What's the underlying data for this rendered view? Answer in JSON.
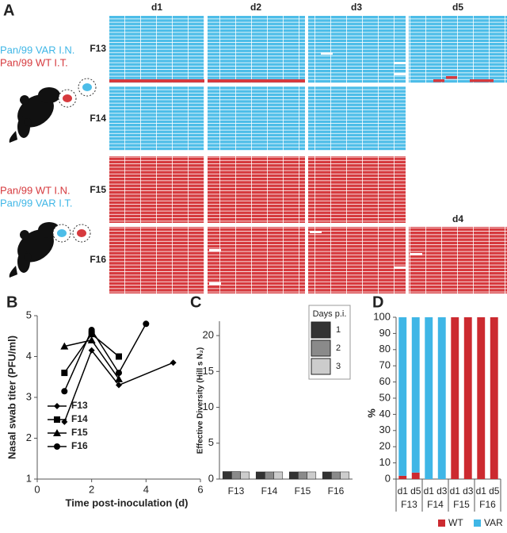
{
  "panel_a": {
    "label": "A",
    "days": [
      "d1",
      "d2",
      "d3",
      "d5"
    ],
    "extra_day": "d4",
    "groups": [
      {
        "legend": [
          "Pan/99 VAR I.N.",
          "Pan/99 WT I.T."
        ],
        "animals": [
          "F13",
          "F14"
        ]
      },
      {
        "legend": [
          "Pan/99 WT I.N.",
          "Pan/99 VAR I.T."
        ],
        "animals": [
          "F15",
          "F16"
        ]
      }
    ]
  },
  "chart_data": [
    {
      "type": "line",
      "label": "B",
      "xlabel": "Time post-inoculation (d)",
      "ylabel": "Nasal swab titer (PFU/ml)",
      "xlim": [
        0,
        6
      ],
      "xticks": [
        0,
        2,
        4,
        6
      ],
      "ylim": [
        1,
        5
      ],
      "yticks": [
        1,
        2,
        3,
        4,
        5
      ],
      "color": "#000000",
      "series": [
        {
          "name": "F13",
          "marker": "diamond",
          "x": [
            1,
            2,
            3,
            5
          ],
          "values": [
            2.4,
            4.15,
            3.3,
            3.85
          ]
        },
        {
          "name": "F14",
          "marker": "square",
          "x": [
            1,
            2,
            3
          ],
          "values": [
            3.6,
            4.55,
            4.0
          ]
        },
        {
          "name": "F15",
          "marker": "triangle",
          "x": [
            1,
            2,
            3
          ],
          "values": [
            4.25,
            4.4,
            3.45
          ]
        },
        {
          "name": "F16",
          "marker": "circle",
          "x": [
            1,
            2,
            3,
            4
          ],
          "values": [
            3.15,
            4.65,
            3.6,
            4.8
          ]
        }
      ]
    },
    {
      "type": "bar",
      "label": "C",
      "ylabel": "Effective Diversity (Hill s N₂)",
      "legend_title": "Days p.i.",
      "categories": [
        "F13",
        "F14",
        "F15",
        "F16"
      ],
      "ylim": [
        0,
        22
      ],
      "yticks": [
        0,
        5,
        10,
        15,
        20
      ],
      "series": [
        {
          "name": "1",
          "color": "#333333",
          "values": [
            1.05,
            1.0,
            1.0,
            1.0
          ]
        },
        {
          "name": "2",
          "color": "#8a8a8a",
          "values": [
            1.05,
            1.0,
            1.0,
            1.0
          ]
        },
        {
          "name": "3",
          "color": "#cccccc",
          "values": [
            1.0,
            1.0,
            1.0,
            1.0
          ]
        }
      ]
    },
    {
      "type": "stacked_bar",
      "label": "D",
      "ylabel": "%",
      "categories": [
        "d1",
        "d5",
        "d1",
        "d3",
        "d1",
        "d3",
        "d1",
        "d5"
      ],
      "group_labels": [
        "F13",
        "F14",
        "F15",
        "F16"
      ],
      "ylim": [
        0,
        100
      ],
      "yticks": [
        0,
        10,
        20,
        30,
        40,
        50,
        60,
        70,
        80,
        90,
        100
      ],
      "series": [
        {
          "name": "WT",
          "color": "#cc2a30",
          "values": [
            2,
            4,
            0,
            0,
            100,
            100,
            100,
            100
          ]
        },
        {
          "name": "VAR",
          "color": "#3fb6e6",
          "values": [
            98,
            96,
            100,
            100,
            0,
            0,
            0,
            0
          ]
        }
      ]
    }
  ]
}
